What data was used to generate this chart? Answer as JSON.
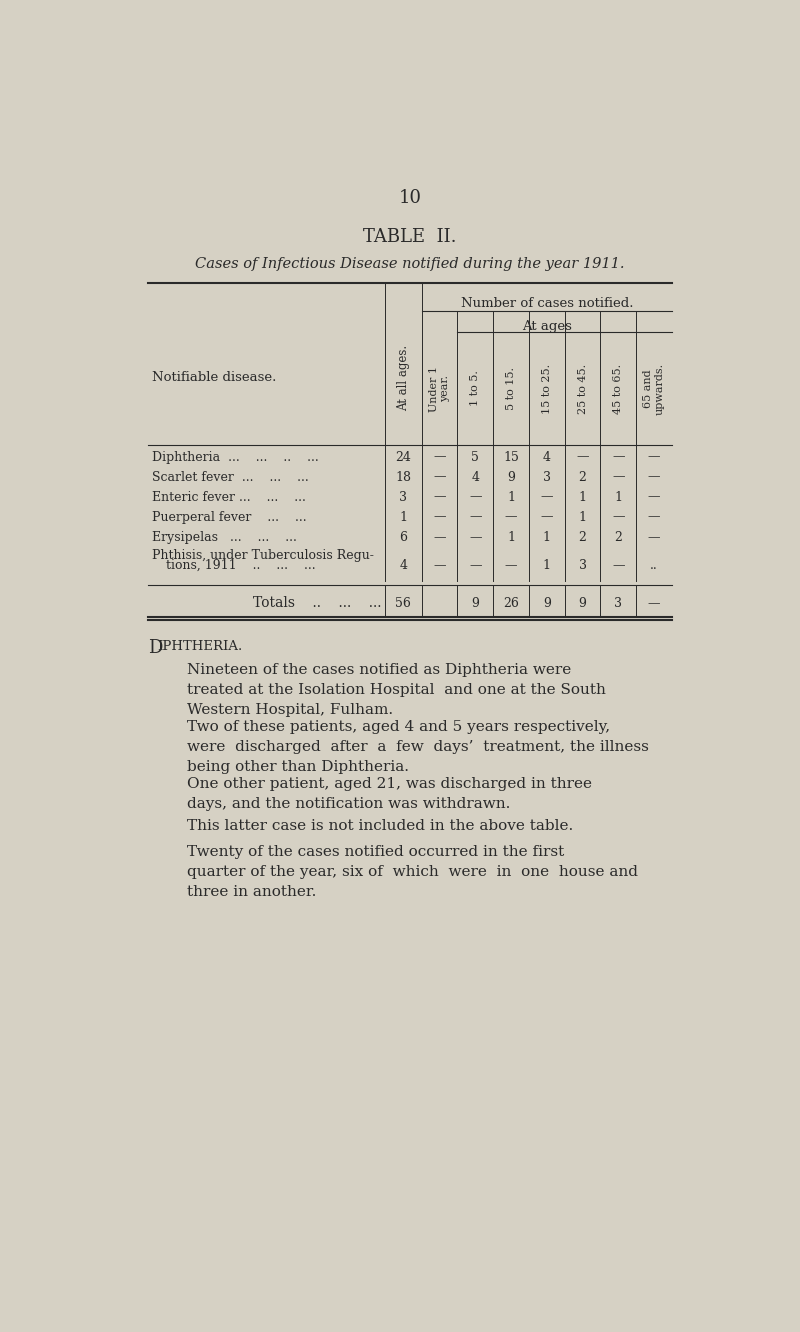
{
  "page_number": "10",
  "title": "TABLE  II.",
  "subtitle": "Cases of Infectious Disease notified during the year 1911.",
  "bg_color": "#d6d1c4",
  "text_color": "#2a2a2a",
  "col_header_main": "Number of cases notified.",
  "col_header_ages": "At ages",
  "col_header_all_ages": "At all ages.",
  "age_cols": [
    "Under 1\nyear.",
    "1 to 5.",
    "5 to 15.",
    "15 to 25.",
    "25 to 45.",
    "45 to 65.",
    "65 and\nupwards."
  ],
  "at_all_ages": [
    24,
    18,
    3,
    1,
    6,
    4
  ],
  "data": [
    [
      "—",
      "5",
      "15",
      "4",
      "—",
      "—",
      "—"
    ],
    [
      "—",
      "4",
      "9",
      "3",
      "2",
      "—",
      "—"
    ],
    [
      "—",
      "—",
      "1",
      "—",
      "1",
      "1",
      "—"
    ],
    [
      "—",
      "—",
      "—",
      "—",
      "1",
      "—",
      "—"
    ],
    [
      "—",
      "—",
      "1",
      "1",
      "2",
      "2",
      "—"
    ],
    [
      "—",
      "—",
      "—",
      "1",
      "3",
      "—",
      ".."
    ]
  ],
  "totals_all": "56",
  "totals_ages": [
    "",
    "9",
    "26",
    "9",
    "9",
    "3",
    "—"
  ],
  "paragraphs": [
    "Nineteen of the cases notified as Diphtheria were\ntreated at the Isolation Hospital  and one at the South\nWestern Hospital, Fulham.",
    "Two of these patients, aged 4 and 5 years respectively,\nwere  discharged  after  a  few  days’  treatment, the illness\nbeing other than Diphtheria.",
    "One other patient, aged 21, was discharged in three\ndays, and the notification was withdrawn.",
    "This latter case is not included in the above table.",
    "Twenty of the cases notified occurred in the first\nquarter of the year, six of  which  were  in  one  house and\nthree in another."
  ],
  "para_indents": [
    true,
    true,
    true,
    true,
    true
  ]
}
